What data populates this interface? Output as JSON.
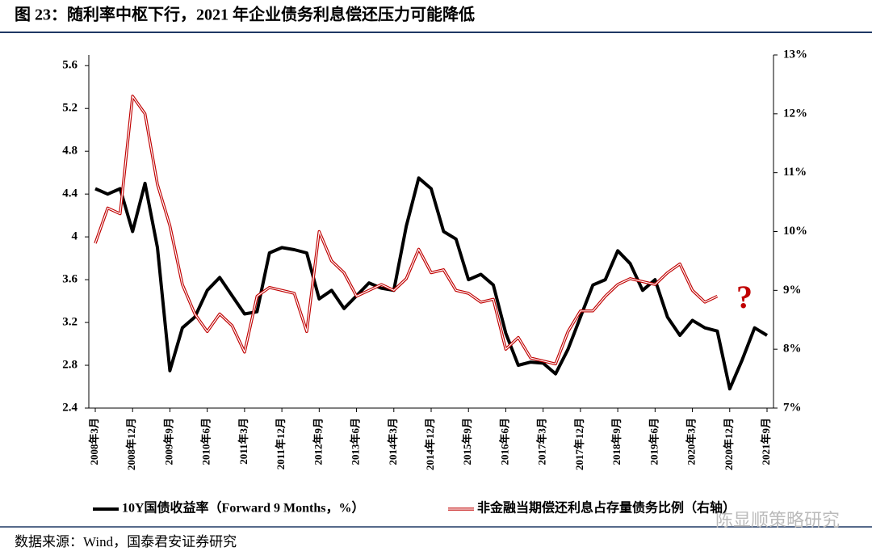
{
  "chart_data": {
    "type": "line",
    "title": "图 23：随利率中枢下行，2021 年企业债务利息偿还压力可能降低",
    "source": "数据来源：Wind，国泰君安证券研究",
    "watermark": "陈显顺策略研究",
    "annotation": "?",
    "categories": [
      "2008年3月",
      null,
      null,
      "2008年12月",
      null,
      null,
      "2009年9月",
      null,
      null,
      "2010年6月",
      null,
      null,
      "2011年3月",
      null,
      null,
      "2011年12月",
      null,
      null,
      "2012年9月",
      null,
      null,
      "2013年6月",
      null,
      null,
      "2014年3月",
      null,
      null,
      "2014年12月",
      null,
      null,
      "2015年9月",
      null,
      null,
      "2016年6月",
      null,
      null,
      "2017年3月",
      null,
      null,
      "2017年12月",
      null,
      null,
      "2018年9月",
      null,
      null,
      "2019年6月",
      null,
      null,
      "2020年3月",
      null,
      null,
      "2020年12月",
      null,
      null,
      "2021年9月"
    ],
    "series": [
      {
        "name": "10Y国债收益率（Forward 9 Months，%）",
        "color": "#000000",
        "values": [
          4.45,
          4.4,
          4.45,
          4.05,
          4.5,
          3.9,
          2.75,
          3.15,
          3.25,
          3.5,
          3.62,
          3.45,
          3.28,
          3.3,
          3.85,
          3.9,
          3.88,
          3.85,
          3.42,
          3.5,
          3.33,
          3.45,
          3.57,
          3.52,
          3.5,
          4.1,
          4.55,
          4.45,
          4.05,
          3.98,
          3.6,
          3.65,
          3.55,
          3.1,
          2.8,
          2.83,
          2.82,
          2.72,
          2.95,
          3.25,
          3.55,
          3.6,
          3.87,
          3.75,
          3.5,
          3.6,
          3.25,
          3.08,
          3.22,
          3.15,
          3.12,
          2.58,
          2.85,
          3.15,
          3.08
        ]
      },
      {
        "name": "非金融当期偿还利息占存量债务比例（右轴）",
        "color": "#c00000",
        "axis": "y2",
        "values": [
          9.8,
          10.4,
          10.3,
          12.3,
          12.0,
          10.8,
          10.1,
          9.1,
          8.6,
          8.3,
          8.6,
          8.4,
          7.95,
          8.9,
          9.05,
          9.0,
          8.95,
          8.3,
          10.0,
          9.5,
          9.3,
          8.9,
          9.0,
          9.1,
          9.0,
          9.2,
          9.7,
          9.3,
          9.35,
          9.0,
          8.95,
          8.8,
          8.85,
          8.0,
          8.2,
          7.85,
          7.8,
          7.75,
          8.3,
          8.65,
          8.65,
          8.9,
          9.1,
          9.2,
          9.15,
          9.1,
          9.3,
          9.45,
          9.0,
          8.8,
          8.9,
          null,
          null,
          null,
          null
        ]
      }
    ],
    "ylim": [
      2.4,
      5.7
    ],
    "yticks": [
      2.4,
      2.8,
      3.2,
      3.6,
      4,
      4.4,
      4.8,
      5.2,
      5.6
    ],
    "y2lim": [
      7,
      13
    ],
    "y2ticks": [
      {
        "value": 7,
        "label": "7%"
      },
      {
        "value": 8,
        "label": "8%"
      },
      {
        "value": 9,
        "label": "9%"
      },
      {
        "value": 10,
        "label": "10%"
      },
      {
        "value": 11,
        "label": "11%"
      },
      {
        "value": 12,
        "label": "12%"
      },
      {
        "value": 13,
        "label": "13%"
      }
    ]
  }
}
